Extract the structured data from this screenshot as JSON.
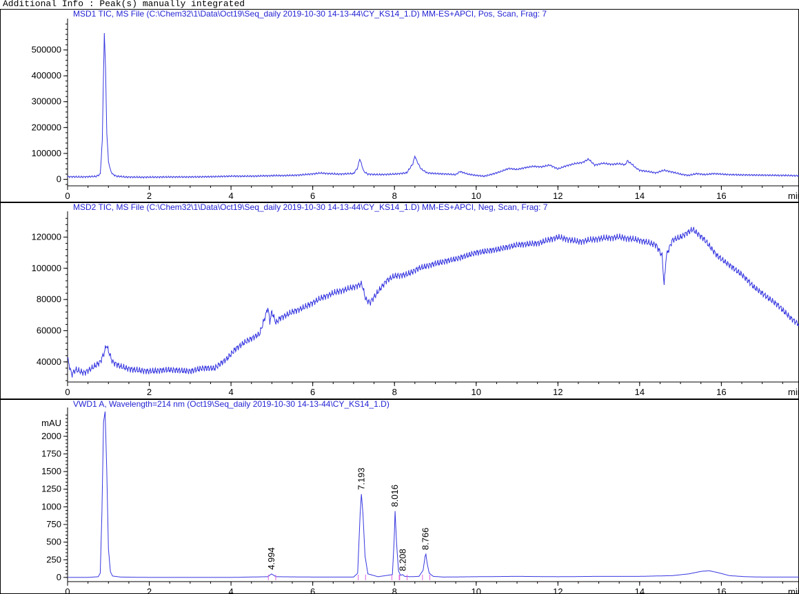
{
  "header_text": "Additional Info : Peak(s) manually integrated",
  "colors": {
    "trace": "#3535e0",
    "title": "#2323d4",
    "axis": "#000000",
    "marker": "#e060e0"
  },
  "chart_data": [
    {
      "type": "line",
      "title": "MSD1 TIC, MS File (C:\\Chem32\\1\\Data\\Oct19\\Seq_daily 2019-10-30 14-13-44\\CY_KS14_1.D)    MM-ES+APCI, Pos, Scan, Frag: 7",
      "x_unit": "min",
      "x_ticks": [
        0,
        2,
        4,
        6,
        8,
        10,
        12,
        14,
        16
      ],
      "y_ticks": [
        0,
        100000,
        200000,
        300000,
        400000,
        500000
      ],
      "y_unit": "",
      "xlim": [
        0,
        17.9
      ],
      "ylim": [
        -20000,
        600000
      ],
      "series": [
        {
          "x": [
            0.0,
            0.1,
            0.3,
            0.5,
            0.7,
            0.8,
            0.85,
            0.88,
            0.9,
            0.93,
            0.96,
            1.0,
            1.05,
            1.1,
            1.2,
            1.4,
            1.8,
            2.5,
            3.0,
            3.5,
            4.0,
            4.5,
            5.0,
            5.5,
            5.8,
            6.2,
            6.6,
            7.0,
            7.1,
            7.15,
            7.2,
            7.25,
            7.35,
            7.6,
            8.0,
            8.3,
            8.45,
            8.5,
            8.55,
            8.65,
            8.8,
            9.0,
            9.3,
            9.5,
            9.6,
            9.8,
            10.0,
            10.2,
            10.4,
            10.6,
            10.8,
            11.0,
            11.2,
            11.4,
            11.6,
            11.8,
            12.0,
            12.2,
            12.4,
            12.6,
            12.75,
            12.9,
            13.1,
            13.3,
            13.5,
            13.65,
            13.7,
            13.75,
            13.8,
            13.9,
            14.0,
            14.2,
            14.4,
            14.6,
            14.8,
            15.0,
            15.2,
            15.4,
            15.6,
            15.8,
            16.0,
            16.2,
            16.5,
            17.0,
            17.5,
            17.9
          ],
          "y": [
            10000,
            10000,
            9000,
            10000,
            11000,
            20000,
            150000,
            420000,
            565000,
            430000,
            180000,
            70000,
            35000,
            20000,
            12000,
            9000,
            8000,
            9000,
            9000,
            10000,
            12000,
            12000,
            14000,
            15000,
            18000,
            24000,
            20000,
            22000,
            45000,
            80000,
            55000,
            30000,
            20000,
            18000,
            20000,
            25000,
            60000,
            90000,
            70000,
            40000,
            25000,
            22000,
            20000,
            18000,
            30000,
            20000,
            15000,
            12000,
            20000,
            30000,
            42000,
            38000,
            45000,
            50000,
            48000,
            55000,
            40000,
            52000,
            60000,
            65000,
            78000,
            55000,
            62000,
            58000,
            60000,
            56000,
            72000,
            65000,
            60000,
            45000,
            35000,
            30000,
            25000,
            35000,
            28000,
            20000,
            15000,
            22000,
            18000,
            22000,
            20000,
            18000,
            17000,
            16000,
            15000,
            14000
          ]
        }
      ]
    },
    {
      "type": "line",
      "title": "MSD2 TIC, MS File (C:\\Chem32\\1\\Data\\Oct19\\Seq_daily 2019-10-30 14-13-44\\CY_KS14_1.D)    MM-ES+APCI, Neg, Scan, Frag: 7",
      "x_unit": "min",
      "x_ticks": [
        0,
        2,
        4,
        6,
        8,
        10,
        12,
        14,
        16
      ],
      "y_ticks": [
        40000,
        60000,
        80000,
        100000,
        120000
      ],
      "y_unit": "",
      "xlim": [
        0,
        17.9
      ],
      "ylim": [
        28000,
        133000
      ],
      "series": [
        {
          "x": [
            0.0,
            0.1,
            0.2,
            0.4,
            0.6,
            0.8,
            0.9,
            0.95,
            1.0,
            1.1,
            1.3,
            1.6,
            2.0,
            2.5,
            3.0,
            3.3,
            3.6,
            3.9,
            4.1,
            4.3,
            4.5,
            4.7,
            4.85,
            4.9,
            4.95,
            5.0,
            5.1,
            5.2,
            5.5,
            5.8,
            6.0,
            6.3,
            6.6,
            6.9,
            7.2,
            7.3,
            7.4,
            7.6,
            7.8,
            8.0,
            8.3,
            8.6,
            9.0,
            9.5,
            10.0,
            10.5,
            11.0,
            11.5,
            12.0,
            12.5,
            13.0,
            13.5,
            14.0,
            14.4,
            14.55,
            14.6,
            14.65,
            14.8,
            15.0,
            15.3,
            15.6,
            15.9,
            16.2,
            16.5,
            16.8,
            17.1,
            17.4,
            17.7,
            17.9
          ],
          "y": [
            42000,
            32000,
            35000,
            33000,
            36000,
            40000,
            46000,
            51000,
            47000,
            40000,
            37000,
            35000,
            34000,
            35000,
            34000,
            36000,
            36000,
            42000,
            48000,
            52000,
            55000,
            58000,
            70000,
            75000,
            66000,
            72000,
            65000,
            68000,
            72000,
            75000,
            78000,
            82000,
            85000,
            87000,
            90000,
            80000,
            78000,
            85000,
            92000,
            95000,
            96000,
            100000,
            103000,
            106000,
            110000,
            112000,
            115000,
            116000,
            120000,
            117000,
            119000,
            120000,
            118000,
            115000,
            108000,
            89000,
            108000,
            118000,
            120000,
            125000,
            118000,
            108000,
            102000,
            96000,
            88000,
            82000,
            76000,
            68000,
            64000
          ]
        }
      ]
    },
    {
      "type": "line",
      "title": "VWD1 A, Wavelength=214 nm (Oct19\\Seq_daily 2019-10-30 14-13-44\\CY_KS14_1.D)",
      "x_unit": "min",
      "y_unit": "mAU",
      "x_ticks": [
        0,
        2,
        4,
        6,
        8,
        10,
        12,
        14,
        16
      ],
      "y_ticks": [
        0,
        250,
        500,
        750,
        1000,
        1250,
        1500,
        1750,
        2000
      ],
      "xlim": [
        0,
        17.9
      ],
      "ylim": [
        -40,
        2330
      ],
      "peak_labels": [
        {
          "rt": "4.994",
          "x": 4.994,
          "height": 50
        },
        {
          "rt": "7.193",
          "x": 7.193,
          "height": 1180
        },
        {
          "rt": "8.016",
          "x": 8.016,
          "height": 940
        },
        {
          "rt": "8.208",
          "x": 8.208,
          "height": 30
        },
        {
          "rt": "8.766",
          "x": 8.766,
          "height": 330
        }
      ],
      "series": [
        {
          "x": [
            0.0,
            0.5,
            0.75,
            0.8,
            0.84,
            0.88,
            0.92,
            0.96,
            1.0,
            1.05,
            1.1,
            1.3,
            2.0,
            3.0,
            4.0,
            4.9,
            4.99,
            5.1,
            6.0,
            7.0,
            7.1,
            7.16,
            7.19,
            7.23,
            7.28,
            7.35,
            7.6,
            7.95,
            7.99,
            8.016,
            8.05,
            8.1,
            8.15,
            8.2,
            8.25,
            8.4,
            8.6,
            8.7,
            8.75,
            8.77,
            8.8,
            8.85,
            8.95,
            9.2,
            10.0,
            11.0,
            12.0,
            13.0,
            14.0,
            14.8,
            15.2,
            15.5,
            15.7,
            15.9,
            16.2,
            16.6,
            17.0,
            17.9
          ],
          "y": [
            0,
            0,
            10,
            60,
            900,
            2200,
            2350,
            1500,
            400,
            80,
            20,
            5,
            0,
            0,
            0,
            10,
            50,
            10,
            5,
            5,
            60,
            900,
            1180,
            900,
            300,
            50,
            10,
            40,
            500,
            940,
            500,
            90,
            30,
            40,
            15,
            10,
            15,
            100,
            300,
            330,
            200,
            60,
            15,
            5,
            10,
            15,
            10,
            15,
            15,
            25,
            50,
            85,
            95,
            70,
            25,
            10,
            5,
            5
          ]
        }
      ]
    }
  ]
}
